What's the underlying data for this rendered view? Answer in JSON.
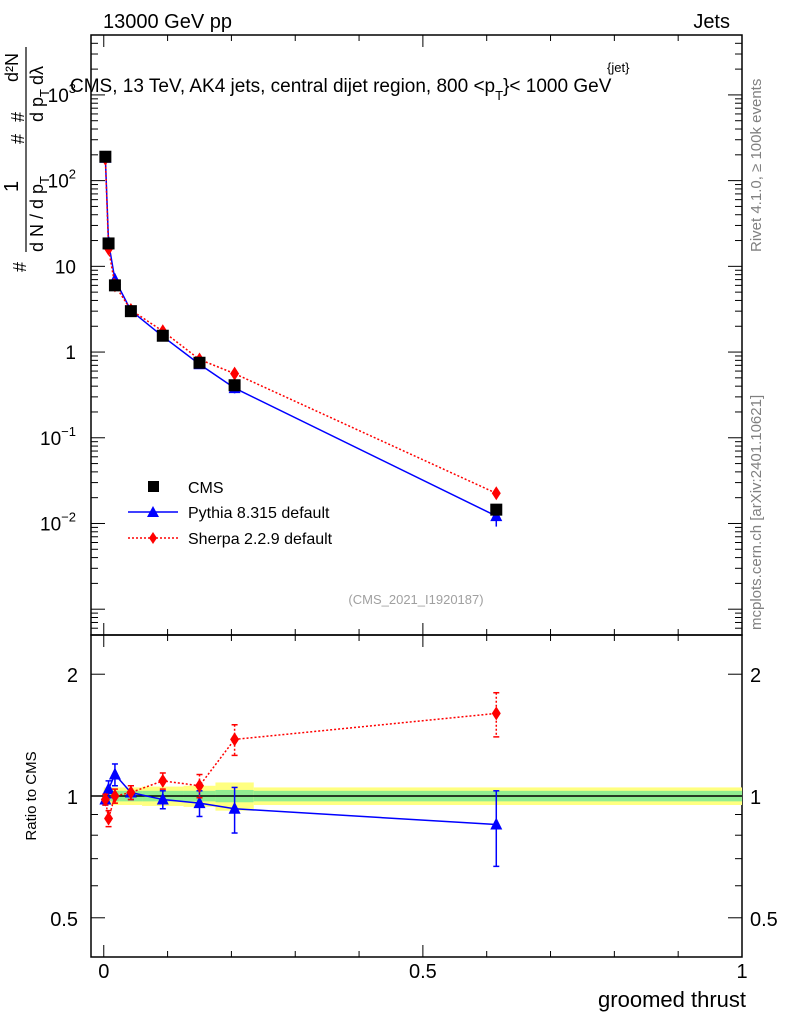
{
  "header": {
    "left": "13000 GeV pp",
    "right": "Jets"
  },
  "side_labels": {
    "rivet": "Rivet 4.1.0, ≥ 100k events",
    "mcplots": "mcplots.cern.ch [arXiv:2401.10621]"
  },
  "title": {
    "main": "CMS, 13 TeV, AK4 jets, central dijet region, 800 <p",
    "sup": "{jet}",
    "sub": "T",
    "tail": "}< 1000 GeV"
  },
  "y_axis_label": {
    "hash1": "#",
    "one": "1",
    "dN_dpT": "d N / d p",
    "T1": "T",
    "hash2": "#",
    "d2N": "d²N",
    "hash3": "#",
    "dpT_dl": "d p",
    "T2": "T",
    "dl": "dλ"
  },
  "watermark": "(CMS_2021_I1920187)",
  "x_axis_label": "groomed thrust",
  "ratio_axis_label": "Ratio to CMS",
  "legend": [
    {
      "label": "CMS",
      "color": "#000000",
      "marker": "square"
    },
    {
      "label": "Pythia 8.315 default",
      "color": "#0000ff",
      "marker": "triangle"
    },
    {
      "label": "Sherpa 2.2.9 default",
      "color": "#ff0000",
      "marker": "diamond"
    }
  ],
  "chart_data": {
    "type": "scatter",
    "xlabel": "groomed thrust",
    "xlim": [
      -0.02,
      1.0
    ],
    "x_ticks": [
      {
        "v": 0,
        "label": "0"
      },
      {
        "v": 0.5,
        "label": "0.5"
      },
      {
        "v": 1,
        "label": "1"
      }
    ],
    "main_panel": {
      "yscale": "log",
      "ylim": [
        0.0005,
        5000
      ],
      "y_ticks": [
        {
          "v": 0.01,
          "base": "10",
          "exp": "−2"
        },
        {
          "v": 0.1,
          "base": "10",
          "exp": "−1"
        },
        {
          "v": 1,
          "base": "1",
          "exp": ""
        },
        {
          "v": 10,
          "base": "10",
          "exp": ""
        },
        {
          "v": 100,
          "base": "10",
          "exp": "2"
        },
        {
          "v": 1000,
          "base": "10",
          "exp": "3"
        }
      ],
      "series": [
        {
          "name": "CMS",
          "color": "#000000",
          "x": [
            0.0025,
            0.0075,
            0.0175,
            0.0425,
            0.0925,
            0.15,
            0.205,
            0.615
          ],
          "y": [
            190,
            18.5,
            6.0,
            3.0,
            1.55,
            0.75,
            0.41,
            0.0145
          ]
        },
        {
          "name": "Pythia 8.315 default",
          "color": "#0000ff",
          "x": [
            0.0025,
            0.0075,
            0.0175,
            0.0425,
            0.0925,
            0.15,
            0.205,
            0.615
          ],
          "y": [
            185,
            19.0,
            7.0,
            3.05,
            1.52,
            0.72,
            0.38,
            0.0122
          ],
          "err": [
            5,
            0.6,
            0.3,
            0.1,
            0.06,
            0.04,
            0.05,
            0.003
          ]
        },
        {
          "name": "Sherpa 2.2.9 default",
          "color": "#ff0000",
          "x": [
            0.0025,
            0.0075,
            0.0175,
            0.0425,
            0.0925,
            0.15,
            0.205,
            0.615
          ],
          "y": [
            180,
            16.0,
            6.0,
            3.1,
            1.75,
            0.82,
            0.56,
            0.0225
          ],
          "err": [
            4,
            0.5,
            0.25,
            0.1,
            0.06,
            0.04,
            0.04,
            0.0025
          ]
        }
      ]
    },
    "ratio_panel": {
      "ylabel": "Ratio to CMS",
      "yscale": "log",
      "ylim": [
        0.4,
        2.5
      ],
      "y_ticks": [
        {
          "v": 0.5,
          "label": "0.5"
        },
        {
          "v": 1,
          "label": "1"
        },
        {
          "v": 2,
          "label": "2"
        }
      ],
      "band_bins": [
        0,
        0.005,
        0.01,
        0.025,
        0.06,
        0.125,
        0.175,
        0.235,
        1.0
      ],
      "band_inner": [
        0.03,
        0.03,
        0.03,
        0.03,
        0.03,
        0.03,
        0.035,
        0.03
      ],
      "band_outer": [
        0.05,
        0.05,
        0.05,
        0.05,
        0.055,
        0.06,
        0.08,
        0.05
      ],
      "series": [
        {
          "name": "Pythia 8.315 default",
          "color": "#0000ff",
          "x": [
            0.0025,
            0.0075,
            0.0175,
            0.0425,
            0.0925,
            0.15,
            0.205,
            0.615
          ],
          "y": [
            0.98,
            1.04,
            1.13,
            1.02,
            0.98,
            0.96,
            0.93,
            0.85
          ],
          "err": [
            0.03,
            0.05,
            0.07,
            0.04,
            0.05,
            0.07,
            0.12,
            0.18
          ]
        },
        {
          "name": "Sherpa 2.2.9 default",
          "color": "#ff0000",
          "x": [
            0.0025,
            0.0075,
            0.0175,
            0.0425,
            0.0925,
            0.15,
            0.205,
            0.615
          ],
          "y": [
            0.98,
            0.88,
            1.0,
            1.02,
            1.09,
            1.06,
            1.38,
            1.6
          ],
          "err": [
            0.03,
            0.04,
            0.04,
            0.04,
            0.05,
            0.07,
            0.12,
            0.2
          ]
        }
      ]
    }
  }
}
